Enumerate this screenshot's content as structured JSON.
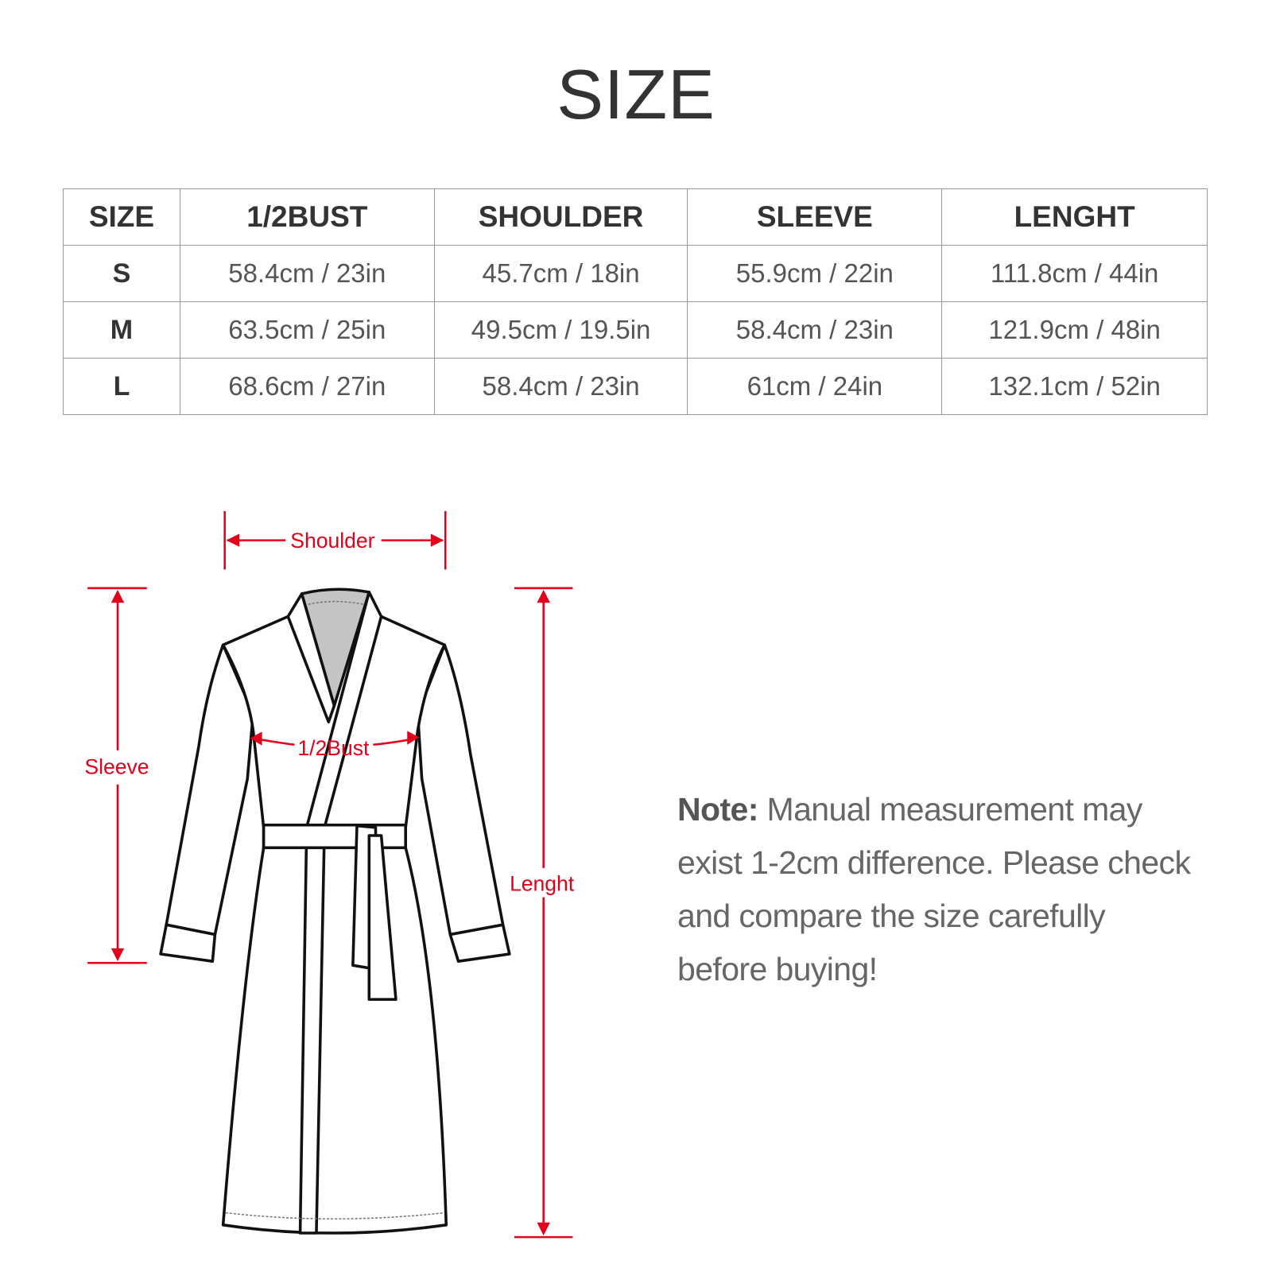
{
  "title": "SIZE",
  "table": {
    "headers": [
      "SIZE",
      "1/2BUST",
      "SHOULDER",
      "SLEEVE",
      "LENGHT"
    ],
    "rows": [
      [
        "S",
        "58.4cm / 23in",
        "45.7cm / 18in",
        "55.9cm / 22in",
        "111.8cm / 44in"
      ],
      [
        "M",
        "63.5cm / 25in",
        "49.5cm / 19.5in",
        "58.4cm / 23in",
        "121.9cm / 48in"
      ],
      [
        "L",
        "68.6cm / 27in",
        "58.4cm / 23in",
        "61cm / 24in",
        "132.1cm / 52in"
      ]
    ]
  },
  "diagram": {
    "shoulder": "Shoulder",
    "bust": "1/2Bust",
    "sleeve": "Sleeve",
    "length": "Lenght",
    "accent": "#e3001b"
  },
  "note": {
    "label": "Note:",
    "text": " Manual measurement may exist 1-2cm difference. Please check and compare the size carefully before buying!"
  }
}
